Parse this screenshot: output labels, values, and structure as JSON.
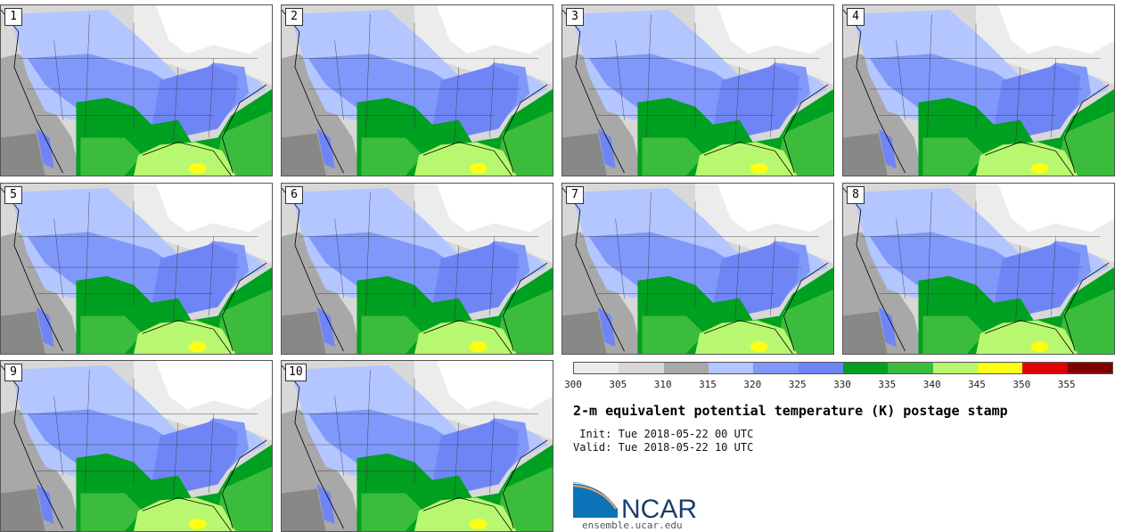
{
  "stamps": [
    "1",
    "2",
    "3",
    "4",
    "5",
    "6",
    "7",
    "8",
    "9",
    "10"
  ],
  "colorbar": {
    "colors": [
      "#ececec",
      "#d8d8d8",
      "#a8a8a8",
      "#b3c6ff",
      "#7f98fa",
      "#7085f5",
      "#00a020",
      "#3cbc3c",
      "#b8f870",
      "#ffff14",
      "#e10000",
      "#800000"
    ],
    "ticks": [
      "300",
      "305",
      "310",
      "315",
      "320",
      "325",
      "330",
      "335",
      "340",
      "345",
      "350",
      "355"
    ]
  },
  "title": "2-m equivalent potential temperature (K) postage stamp",
  "init": " Init: Tue 2018-05-22 00 UTC",
  "valid": "Valid: Tue 2018-05-22 10 UTC",
  "logo": {
    "text": "NCAR"
  },
  "url": "ensemble.ucar.edu"
}
